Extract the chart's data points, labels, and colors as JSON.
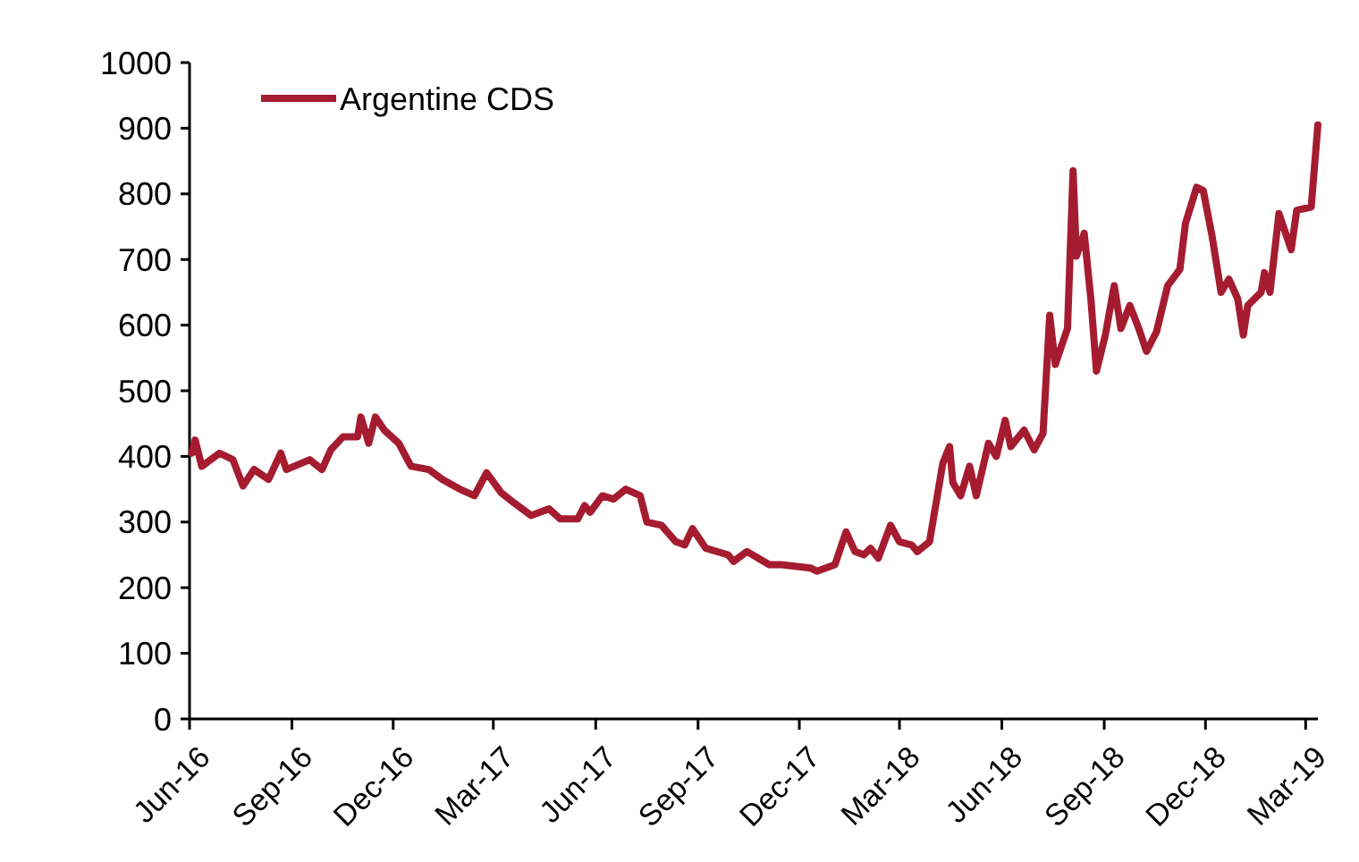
{
  "chart_data": {
    "type": "line",
    "x": [
      "2016-06-03",
      "2016-06-06",
      "2016-06-12",
      "2016-06-28",
      "2016-07-10",
      "2016-07-19",
      "2016-07-29",
      "2016-08-11",
      "2016-08-22",
      "2016-08-27",
      "2016-09-17",
      "2016-09-28",
      "2016-10-06",
      "2016-10-17",
      "2016-10-30",
      "2016-11-02",
      "2016-11-09",
      "2016-11-15",
      "2016-11-23",
      "2016-12-06",
      "2016-12-17",
      "2017-01-02",
      "2017-01-14",
      "2017-01-30",
      "2017-02-12",
      "2017-02-23",
      "2017-03-08",
      "2017-03-19",
      "2017-04-04",
      "2017-04-20",
      "2017-04-30",
      "2017-05-16",
      "2017-05-22",
      "2017-05-27",
      "2017-06-07",
      "2017-06-17",
      "2017-06-28",
      "2017-07-11",
      "2017-07-17",
      "2017-07-30",
      "2017-08-12",
      "2017-08-20",
      "2017-08-27",
      "2017-09-08",
      "2017-09-28",
      "2017-10-03",
      "2017-10-15",
      "2017-11-04",
      "2017-11-15",
      "2017-12-11",
      "2017-12-17",
      "2018-01-02",
      "2018-01-12",
      "2018-01-20",
      "2018-01-28",
      "2018-02-03",
      "2018-02-10",
      "2018-02-21",
      "2018-03-01",
      "2018-03-12",
      "2018-03-17",
      "2018-03-28",
      "2018-04-04",
      "2018-04-09",
      "2018-04-15",
      "2018-04-18",
      "2018-04-25",
      "2018-05-03",
      "2018-05-09",
      "2018-05-20",
      "2018-05-27",
      "2018-06-04",
      "2018-06-09",
      "2018-06-21",
      "2018-06-30",
      "2018-07-08",
      "2018-07-14",
      "2018-07-19",
      "2018-07-30",
      "2018-08-04",
      "2018-08-07",
      "2018-08-14",
      "2018-08-20",
      "2018-08-25",
      "2018-09-02",
      "2018-09-10",
      "2018-09-16",
      "2018-09-24",
      "2018-10-02",
      "2018-10-09",
      "2018-10-18",
      "2018-10-28",
      "2018-11-08",
      "2018-11-13",
      "2018-11-23",
      "2018-11-29",
      "2018-12-07",
      "2018-12-15",
      "2018-12-22",
      "2018-12-30",
      "2019-01-04",
      "2019-01-08",
      "2019-01-20",
      "2019-01-23",
      "2019-01-28",
      "2019-02-05",
      "2019-02-16",
      "2019-02-21",
      "2019-03-06",
      "2019-03-12"
    ],
    "series": [
      {
        "name": "Argentine CDS",
        "color": "#a51c30",
        "values": [
          405,
          425,
          385,
          405,
          395,
          355,
          380,
          365,
          405,
          380,
          395,
          380,
          410,
          430,
          430,
          460,
          420,
          460,
          440,
          420,
          385,
          380,
          365,
          350,
          340,
          375,
          345,
          330,
          310,
          320,
          305,
          305,
          325,
          315,
          340,
          335,
          350,
          340,
          300,
          295,
          270,
          265,
          290,
          260,
          250,
          240,
          255,
          235,
          235,
          230,
          225,
          235,
          285,
          255,
          250,
          260,
          245,
          295,
          270,
          265,
          255,
          270,
          340,
          390,
          415,
          360,
          340,
          385,
          340,
          420,
          400,
          455,
          415,
          440,
          410,
          435,
          615,
          540,
          595,
          835,
          705,
          740,
          640,
          530,
          585,
          660,
          595,
          630,
          595,
          560,
          590,
          660,
          685,
          755,
          810,
          805,
          735,
          650,
          670,
          640,
          585,
          630,
          650,
          680,
          650,
          770,
          715,
          775,
          780,
          905
        ]
      }
    ],
    "ylim": [
      0,
      1000
    ],
    "yticks": [
      0,
      100,
      200,
      300,
      400,
      500,
      600,
      700,
      800,
      900,
      1000
    ],
    "xlim": [
      "2016-06-01",
      "2019-03-12"
    ],
    "xticks": [
      {
        "value": "2016-06-01",
        "label": "Jun-16"
      },
      {
        "value": "2016-09-01",
        "label": "Sep-16"
      },
      {
        "value": "2016-12-01",
        "label": "Dec-16"
      },
      {
        "value": "2017-03-01",
        "label": "Mar-17"
      },
      {
        "value": "2017-06-01",
        "label": "Jun-17"
      },
      {
        "value": "2017-09-01",
        "label": "Sep-17"
      },
      {
        "value": "2017-12-01",
        "label": "Dec-17"
      },
      {
        "value": "2018-03-01",
        "label": "Mar-18"
      },
      {
        "value": "2018-06-01",
        "label": "Jun-18"
      },
      {
        "value": "2018-09-01",
        "label": "Sep-18"
      },
      {
        "value": "2018-12-01",
        "label": "Dec-18"
      },
      {
        "value": "2019-03-01",
        "label": "Mar-19"
      }
    ],
    "legend": "top left",
    "grid": false,
    "marker": "none",
    "line_style": "solid"
  }
}
